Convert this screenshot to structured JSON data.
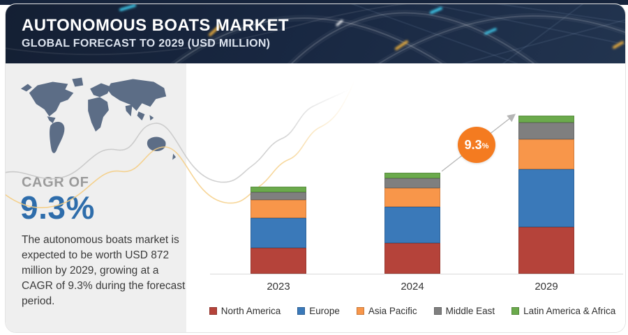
{
  "header": {
    "title": "AUTONOMOUS BOATS MARKET",
    "subtitle": "GLOBAL FORECAST TO 2029 (USD MILLION)"
  },
  "sidebar": {
    "cagr_label": "CAGR OF",
    "cagr_value": "9.3%",
    "description": "The autonomous boats market is expected to be worth USD 872 million by 2029, growing at a CAGR of 9.3% during the forecast period.",
    "map_color": "#5c6d86"
  },
  "badge": {
    "value": "9.3",
    "unit": "%",
    "color": "#f47b20",
    "meaning": "CAGR from 2024 to 2029"
  },
  "chart_data": {
    "type": "bar",
    "stacked": true,
    "title": "Autonomous Boats Market, Global Forecast to 2029 (USD Million)",
    "categories": [
      "2023",
      "2024",
      "2029"
    ],
    "series": [
      {
        "name": "North America",
        "color": "#b5433a",
        "values": [
          142,
          169,
          258
        ]
      },
      {
        "name": "Europe",
        "color": "#3a79b9",
        "values": [
          165,
          200,
          319
        ]
      },
      {
        "name": "Asia Pacific",
        "color": "#f8964a",
        "values": [
          100,
          104,
          165
        ]
      },
      {
        "name": "Middle East",
        "color": "#7f7f7f",
        "values": [
          42,
          54,
          92
        ]
      },
      {
        "name": "Latin America & Africa",
        "color": "#6baa4c",
        "values": [
          31,
          31,
          38
        ]
      }
    ],
    "totals": [
      480,
      558,
      872
    ],
    "xlabel": "",
    "ylabel": "USD Million",
    "ylim": [
      0,
      900
    ],
    "grid": false,
    "legend_position": "bottom",
    "annotation": {
      "text": "9.3%",
      "type": "cagr-arrow",
      "from_category": "2024",
      "to_category": "2029"
    }
  },
  "colors": {
    "header_bg": "#182741",
    "sidebar_bg": "#efefef",
    "cagr_label": "#9b9b9b",
    "cagr_value": "#2e6dab",
    "axis_line": "#d9d9d9",
    "decor_gray": "#c7c7c7",
    "decor_yellow": "#f5cd82"
  }
}
